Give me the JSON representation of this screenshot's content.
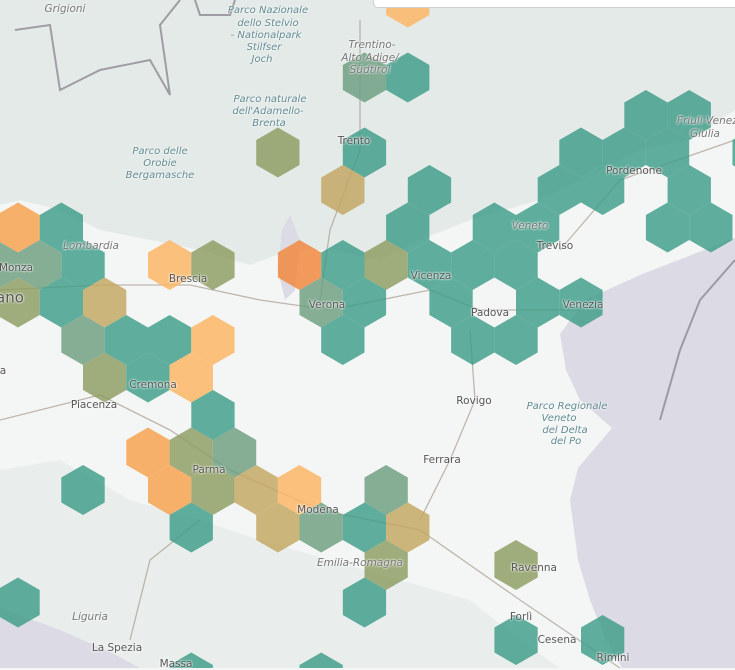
{
  "palette": {
    "teal": "#3e9c89",
    "green_teal": "#6c9d80",
    "olive": "#8c9c62",
    "tan": "#c3a660",
    "light_orange": "#fdb462",
    "orange": "#f7a04c",
    "dark_orange": "#f1853a",
    "sea": "#dcdae4",
    "mountain": "#e4eae8"
  },
  "labels": {
    "grigioni": "Grigioni",
    "stelvio": [
      "Parco Nazionale",
      "dello Stelvio",
      "- Nationalpark",
      "Stilfser",
      "Joch"
    ],
    "trentino": [
      "Trentino-",
      "Alto Adige/",
      "Südtirol"
    ],
    "adamello": [
      "Parco naturale",
      "dell'Adamello-",
      "Brenta"
    ],
    "orobie": [
      "Parco delle",
      "Orobie",
      "Bergamasche"
    ],
    "trento": "Trento",
    "friuli": [
      "Friuli-Venezia",
      "Giulia"
    ],
    "pordenone": "Pordenone",
    "lombardia": "Lombardia",
    "monza": "Monza",
    "milano": "ano",
    "brescia": "Brescia",
    "verona": "Verona",
    "vicenza": "Vicenza",
    "veneto": "Veneto",
    "treviso": "Treviso",
    "padova": "Padova",
    "venezia": "Venezia",
    "cremona": "Cremona",
    "piacenza": "Piacenza",
    "lodi": "a",
    "rovigo": "Rovigo",
    "delta_po": [
      "Parco Regionale",
      "Veneto",
      "del Delta",
      "del Po"
    ],
    "ferrara": "Ferrara",
    "parma": "Parma",
    "modena": "Modena",
    "emilia_romagna": "Emilia-Romagna",
    "ravenna": "Ravenna",
    "forli": "Forlì",
    "cesena": "Cesena",
    "rimini": "Rimini",
    "liguria": "Liguria",
    "la_spezia": "La Spezia",
    "massa": "Massa"
  }
}
